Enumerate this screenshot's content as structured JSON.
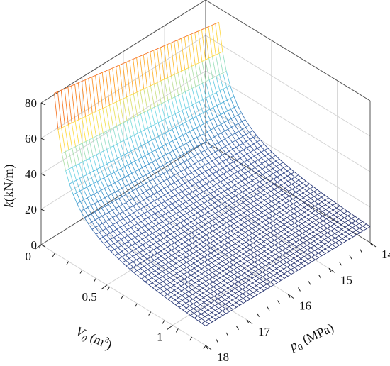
{
  "chart_data": {
    "type": "surface",
    "title": "",
    "zlabel": {
      "var": "k",
      "unit": "(kN/m)"
    },
    "xlabel": {
      "var": "V",
      "sub": "0",
      "unit": " (m",
      "sup": "3",
      "close": ")"
    },
    "ylabel": {
      "var": "p",
      "sub": "0",
      "unit": " (MPa)"
    },
    "x_axis": {
      "name": "V0",
      "unit": "m^3",
      "range": [
        0,
        1.25
      ],
      "ticks": [
        0,
        0.5,
        1
      ],
      "tick_labels": [
        "0",
        "0.5",
        "1"
      ]
    },
    "y_axis": {
      "name": "p0",
      "unit": "MPa",
      "range": [
        14,
        18
      ],
      "ticks": [
        14,
        15,
        16,
        17,
        18
      ],
      "tick_labels": [
        "14",
        "15",
        "16",
        "17",
        "18"
      ]
    },
    "z_axis": {
      "name": "k",
      "unit": "kN/m",
      "range": [
        0,
        80
      ],
      "ticks": [
        0,
        20,
        40,
        60,
        80
      ],
      "tick_labels": [
        "0",
        "20",
        "40",
        "60",
        "80"
      ]
    },
    "surface": {
      "description": "k decreases hyperbolically with V0 and increases with p0",
      "V0_min": 0.1,
      "V0_max": 1.25,
      "k_at_V0min_p0_14": 72,
      "k_at_V0min_p0_18": 90,
      "k_at_V0max_p0_14": 9,
      "k_at_V0max_p0_18": 11
    },
    "colormap": [
      "#27306a",
      "#3a5aa0",
      "#4aa8d8",
      "#7fe0e8",
      "#ffe24a",
      "#ff9a2a",
      "#e02020"
    ],
    "grid": true
  }
}
